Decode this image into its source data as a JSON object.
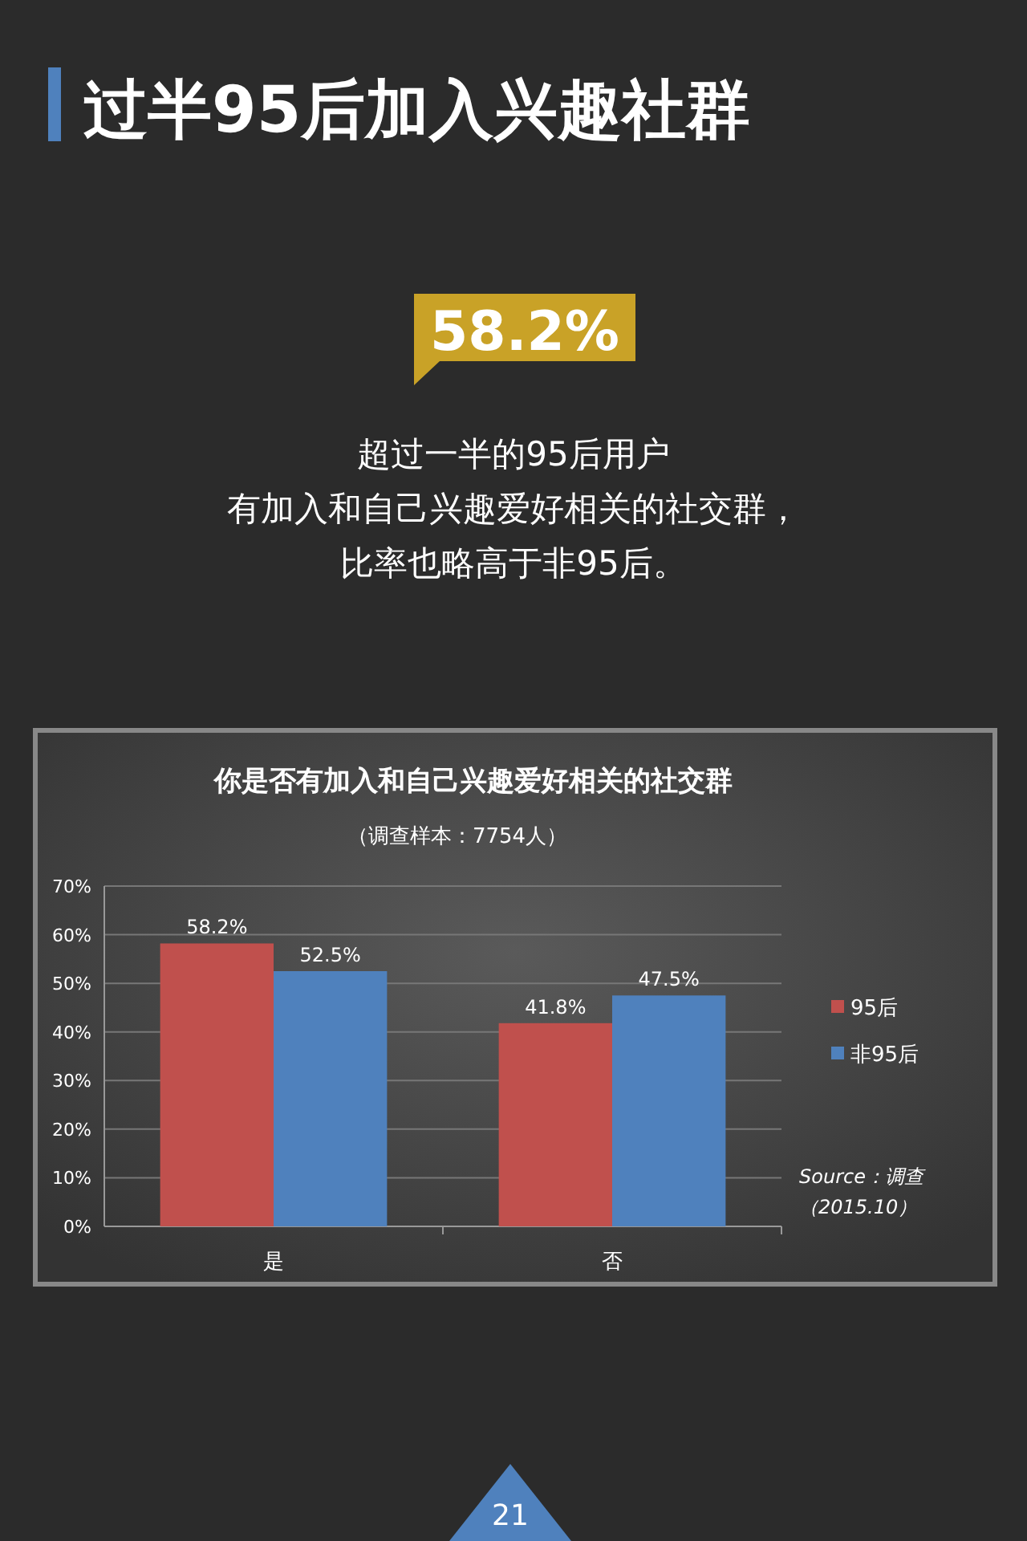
{
  "chart_data": {
    "type": "bar",
    "title": "过半95后加入兴趣社群",
    "subtitle": "你是否有加入和自己兴趣爱好相关的社交群",
    "annotations": [
      "58.2%",
      "超过一半的95后用户",
      "有加入和自己兴趣爱好相关的社交群，",
      "比率也略高于非95后。",
      "（调查样本：7754人）",
      "Source：调查",
      "（2015.10）",
      "21"
    ],
    "categories": [
      "是",
      "否"
    ],
    "series": [
      {
        "name": "95后",
        "color": "#c0504d",
        "values": [
          58.2,
          41.8
        ],
        "value_labels": [
          "58.2%",
          "41.8%"
        ]
      },
      {
        "name": "非95后",
        "color": "#4f81bd",
        "values": [
          52.5,
          47.5
        ],
        "value_labels": [
          "52.5%",
          "47.5%"
        ]
      }
    ],
    "ylim": [
      0,
      70
    ],
    "yticks": [
      {
        "value": 0,
        "label": "0%"
      },
      {
        "value": 10,
        "label": "10%"
      },
      {
        "value": 20,
        "label": "20%"
      },
      {
        "value": 30,
        "label": "30%"
      },
      {
        "value": 40,
        "label": "40%"
      },
      {
        "value": 50,
        "label": "50%"
      },
      {
        "value": 60,
        "label": "60%"
      },
      {
        "value": 70,
        "label": "70%"
      }
    ],
    "grid": "y",
    "legend": "right"
  }
}
